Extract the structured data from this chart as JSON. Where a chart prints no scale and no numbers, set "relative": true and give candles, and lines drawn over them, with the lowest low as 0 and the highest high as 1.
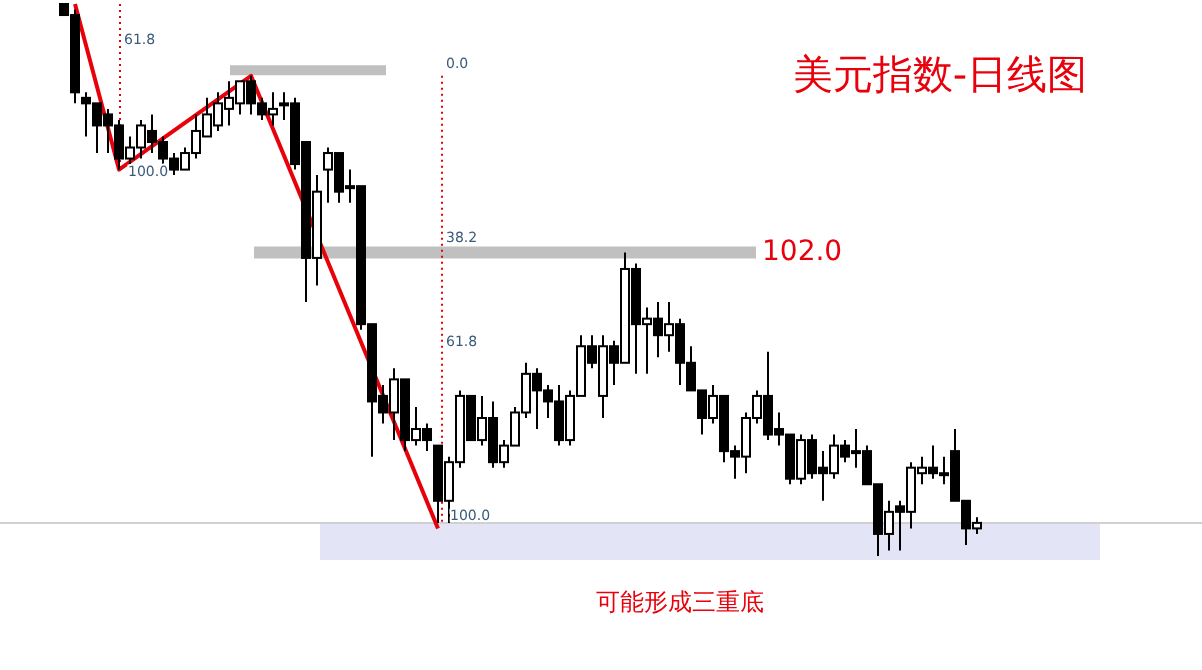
{
  "chart_data": {
    "type": "candlestick",
    "title": "美元指数-日线图",
    "relative": true,
    "categories": [
      null,
      null,
      null,
      null,
      null,
      null,
      null,
      null,
      null,
      null,
      null,
      null,
      null,
      null,
      null,
      null,
      null,
      null,
      null,
      null,
      null,
      null,
      null,
      null,
      null,
      null,
      null,
      null,
      null,
      null,
      null,
      null,
      null,
      null,
      null,
      null,
      null,
      null,
      null,
      null,
      null,
      null,
      null,
      null,
      null,
      null,
      null,
      null,
      null,
      null,
      null,
      null,
      null,
      null,
      null,
      null,
      null,
      null,
      null,
      null,
      null,
      null,
      null,
      null,
      null,
      null,
      null,
      null,
      null,
      null,
      null,
      null,
      null,
      null,
      null,
      null,
      null,
      null,
      null,
      null,
      null,
      null,
      null,
      null
    ],
    "ohlc": [
      [
        1.0,
        1.0,
        0.98,
        0.98
      ],
      [
        0.98,
        0.99,
        0.82,
        0.84
      ],
      [
        0.83,
        0.84,
        0.76,
        0.82
      ],
      [
        0.82,
        0.82,
        0.73,
        0.78
      ],
      [
        0.8,
        0.81,
        0.73,
        0.78
      ],
      [
        0.78,
        0.79,
        0.7,
        0.72
      ],
      [
        0.72,
        0.76,
        0.71,
        0.74
      ],
      [
        0.74,
        0.79,
        0.72,
        0.78
      ],
      [
        0.77,
        0.8,
        0.73,
        0.75
      ],
      [
        0.75,
        0.76,
        0.7,
        0.72
      ],
      [
        0.72,
        0.73,
        0.69,
        0.7
      ],
      [
        0.7,
        0.74,
        0.7,
        0.73
      ],
      [
        0.73,
        0.8,
        0.72,
        0.77
      ],
      [
        0.76,
        0.83,
        0.76,
        0.8
      ],
      [
        0.78,
        0.84,
        0.77,
        0.82
      ],
      [
        0.81,
        0.86,
        0.78,
        0.83
      ],
      [
        0.82,
        0.86,
        0.8,
        0.86
      ],
      [
        0.86,
        0.87,
        0.8,
        0.82
      ],
      [
        0.82,
        0.83,
        0.79,
        0.8
      ],
      [
        0.8,
        0.84,
        0.78,
        0.81
      ],
      [
        0.82,
        0.84,
        0.79,
        0.82
      ],
      [
        0.82,
        0.83,
        0.7,
        0.71
      ],
      [
        0.75,
        0.75,
        0.46,
        0.54
      ],
      [
        0.54,
        0.69,
        0.49,
        0.66
      ],
      [
        0.7,
        0.74,
        0.64,
        0.73
      ],
      [
        0.73,
        0.73,
        0.64,
        0.66
      ],
      [
        0.67,
        0.7,
        0.64,
        0.67
      ],
      [
        0.67,
        0.67,
        0.41,
        0.42
      ],
      [
        0.42,
        0.42,
        0.18,
        0.28
      ],
      [
        0.29,
        0.31,
        0.24,
        0.26
      ],
      [
        0.26,
        0.34,
        0.21,
        0.32
      ],
      [
        0.32,
        0.32,
        0.19,
        0.21
      ],
      [
        0.21,
        0.27,
        0.2,
        0.23
      ],
      [
        0.23,
        0.24,
        0.19,
        0.21
      ],
      [
        0.2,
        0.2,
        0.06,
        0.1
      ],
      [
        0.1,
        0.18,
        0.06,
        0.17
      ],
      [
        0.17,
        0.3,
        0.16,
        0.29
      ],
      [
        0.29,
        0.29,
        0.21,
        0.21
      ],
      [
        0.21,
        0.29,
        0.2,
        0.25
      ],
      [
        0.25,
        0.28,
        0.16,
        0.17
      ],
      [
        0.17,
        0.21,
        0.16,
        0.2
      ],
      [
        0.2,
        0.27,
        0.2,
        0.26
      ],
      [
        0.26,
        0.35,
        0.25,
        0.33
      ],
      [
        0.33,
        0.34,
        0.23,
        0.3
      ],
      [
        0.3,
        0.31,
        0.25,
        0.28
      ],
      [
        0.28,
        0.31,
        0.2,
        0.21
      ],
      [
        0.21,
        0.3,
        0.2,
        0.29
      ],
      [
        0.29,
        0.4,
        0.29,
        0.38
      ],
      [
        0.38,
        0.4,
        0.34,
        0.35
      ],
      [
        0.29,
        0.4,
        0.25,
        0.38
      ],
      [
        0.38,
        0.39,
        0.31,
        0.35
      ],
      [
        0.35,
        0.55,
        0.35,
        0.52
      ],
      [
        0.52,
        0.53,
        0.33,
        0.42
      ],
      [
        0.42,
        0.45,
        0.33,
        0.43
      ],
      [
        0.43,
        0.46,
        0.36,
        0.4
      ],
      [
        0.4,
        0.46,
        0.37,
        0.42
      ],
      [
        0.42,
        0.43,
        0.31,
        0.35
      ],
      [
        0.35,
        0.38,
        0.3,
        0.3
      ],
      [
        0.3,
        0.3,
        0.22,
        0.25
      ],
      [
        0.25,
        0.31,
        0.24,
        0.29
      ],
      [
        0.29,
        0.29,
        0.17,
        0.19
      ],
      [
        0.19,
        0.2,
        0.14,
        0.18
      ],
      [
        0.18,
        0.26,
        0.15,
        0.25
      ],
      [
        0.25,
        0.3,
        0.24,
        0.29
      ],
      [
        0.29,
        0.37,
        0.21,
        0.22
      ],
      [
        0.23,
        0.26,
        0.2,
        0.22
      ],
      [
        0.22,
        0.22,
        0.13,
        0.14
      ],
      [
        0.14,
        0.22,
        0.13,
        0.21
      ],
      [
        0.21,
        0.22,
        0.14,
        0.15
      ],
      [
        0.16,
        0.19,
        0.1,
        0.15
      ],
      [
        0.15,
        0.22,
        0.14,
        0.2
      ],
      [
        0.2,
        0.21,
        0.17,
        0.18
      ],
      [
        0.19,
        0.23,
        0.16,
        0.19
      ],
      [
        0.19,
        0.2,
        0.13,
        0.13
      ],
      [
        0.13,
        0.13,
        0.0,
        0.04
      ],
      [
        0.04,
        0.1,
        0.01,
        0.08
      ],
      [
        0.09,
        0.1,
        0.01,
        0.08
      ],
      [
        0.08,
        0.17,
        0.05,
        0.16
      ],
      [
        0.15,
        0.18,
        0.13,
        0.16
      ],
      [
        0.16,
        0.2,
        0.14,
        0.15
      ],
      [
        0.15,
        0.18,
        0.13,
        0.15
      ],
      [
        0.19,
        0.23,
        0.1,
        0.1
      ],
      [
        0.1,
        0.1,
        0.02,
        0.05
      ],
      [
        0.05,
        0.07,
        0.04,
        0.06
      ]
    ],
    "series": [
      {
        "type": "line",
        "color": "#e8000b",
        "values": [
          null,
          1.0,
          null,
          null,
          null,
          0.7,
          null,
          null,
          null,
          null,
          null,
          null,
          null,
          null,
          null,
          null,
          null,
          0.87,
          null,
          null,
          null,
          null,
          null,
          null,
          null,
          null,
          null,
          null,
          null,
          null,
          null,
          null,
          null,
          null,
          0.05,
          null,
          null,
          null,
          null,
          null,
          null,
          null,
          null,
          null,
          null,
          null,
          null,
          null,
          null,
          null,
          null,
          null,
          null,
          null,
          null,
          null,
          null,
          null,
          null,
          null,
          null,
          null,
          null,
          null,
          null,
          null,
          null,
          null,
          null,
          null,
          null,
          null,
          null,
          null,
          null,
          null,
          null,
          null,
          null,
          null,
          null,
          null,
          null,
          null
        ]
      }
    ],
    "ref_lines": [
      {
        "axis": "y",
        "value": 0.55,
        "color": "#c0c0c0"
      },
      {
        "axis": "y",
        "value": 0.88,
        "color": "#c0c0c0"
      },
      {
        "axis": "y",
        "value": 0.06,
        "color": "#d0d0d0"
      }
    ],
    "bands": [
      {
        "axis": "y",
        "from": 0.0,
        "to": 0.06,
        "color": "#e4e4f7"
      }
    ],
    "annotations": [
      "可能形成三重底",
      "102.0",
      "61.8",
      "100.0",
      "0.0",
      "38.2",
      "61.8",
      "100.0"
    ]
  }
}
